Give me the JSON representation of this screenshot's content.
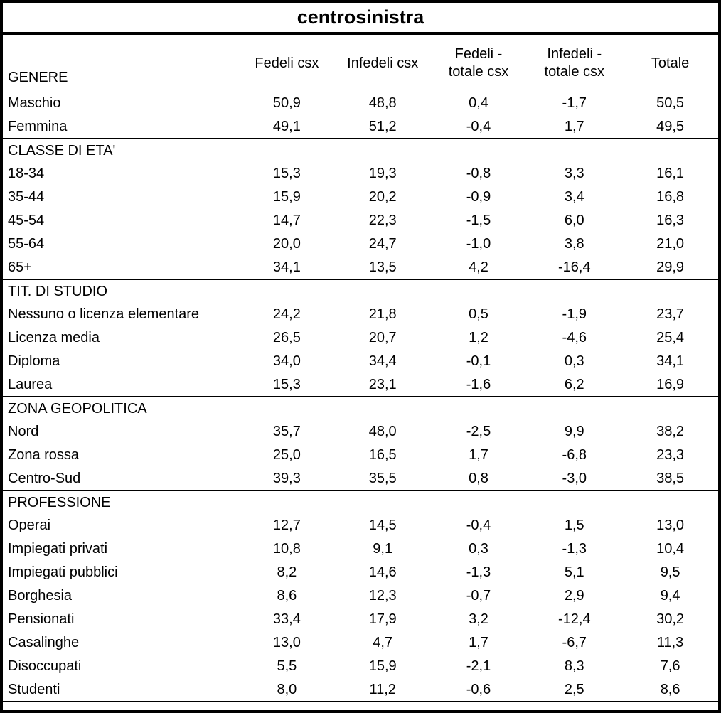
{
  "chart_data": {
    "type": "table",
    "title": "centrosinistra",
    "columns": [
      {
        "line1": "Fedeli csx",
        "line2": ""
      },
      {
        "line1": "Infedeli csx",
        "line2": ""
      },
      {
        "line1": "Fedeli -",
        "line2": "totale csx"
      },
      {
        "line1": "Infedeli -",
        "line2": "totale csx"
      },
      {
        "line1": "Totale",
        "line2": ""
      }
    ],
    "value_format": "decimal-comma",
    "sections": [
      {
        "name": "GENERE",
        "name_in_header_row": true,
        "rows": [
          {
            "label": "Maschio",
            "values": [
              "50,9",
              "48,8",
              "0,4",
              "-1,7",
              "50,5"
            ]
          },
          {
            "label": "Femmina",
            "values": [
              "49,1",
              "51,2",
              "-0,4",
              "1,7",
              "49,5"
            ]
          }
        ]
      },
      {
        "name": "CLASSE DI ETA'",
        "name_in_header_row": false,
        "rows": [
          {
            "label": "18-34",
            "values": [
              "15,3",
              "19,3",
              "-0,8",
              "3,3",
              "16,1"
            ]
          },
          {
            "label": "35-44",
            "values": [
              "15,9",
              "20,2",
              "-0,9",
              "3,4",
              "16,8"
            ]
          },
          {
            "label": "45-54",
            "values": [
              "14,7",
              "22,3",
              "-1,5",
              "6,0",
              "16,3"
            ]
          },
          {
            "label": "55-64",
            "values": [
              "20,0",
              "24,7",
              "-1,0",
              "3,8",
              "21,0"
            ]
          },
          {
            "label": "65+",
            "values": [
              "34,1",
              "13,5",
              "4,2",
              "-16,4",
              "29,9"
            ]
          }
        ]
      },
      {
        "name": "TIT. DI STUDIO",
        "name_in_header_row": false,
        "rows": [
          {
            "label": "Nessuno o licenza elementare",
            "values": [
              "24,2",
              "21,8",
              "0,5",
              "-1,9",
              "23,7"
            ]
          },
          {
            "label": "Licenza media",
            "values": [
              "26,5",
              "20,7",
              "1,2",
              "-4,6",
              "25,4"
            ]
          },
          {
            "label": "Diploma",
            "values": [
              "34,0",
              "34,4",
              "-0,1",
              "0,3",
              "34,1"
            ]
          },
          {
            "label": "Laurea",
            "values": [
              "15,3",
              "23,1",
              "-1,6",
              "6,2",
              "16,9"
            ]
          }
        ]
      },
      {
        "name": "ZONA GEOPOLITICA",
        "name_in_header_row": false,
        "rows": [
          {
            "label": "Nord",
            "values": [
              "35,7",
              "48,0",
              "-2,5",
              "9,9",
              "38,2"
            ]
          },
          {
            "label": "Zona rossa",
            "values": [
              "25,0",
              "16,5",
              "1,7",
              "-6,8",
              "23,3"
            ]
          },
          {
            "label": "Centro-Sud",
            "values": [
              "39,3",
              "35,5",
              "0,8",
              "-3,0",
              "38,5"
            ]
          }
        ]
      },
      {
        "name": "PROFESSIONE",
        "name_in_header_row": false,
        "rows": [
          {
            "label": "Operai",
            "values": [
              "12,7",
              "14,5",
              "-0,4",
              "1,5",
              "13,0"
            ]
          },
          {
            "label": "Impiegati privati",
            "values": [
              "10,8",
              "9,1",
              "0,3",
              "-1,3",
              "10,4"
            ]
          },
          {
            "label": "Impiegati pubblici",
            "values": [
              "8,2",
              "14,6",
              "-1,3",
              "5,1",
              "9,5"
            ]
          },
          {
            "label": "Borghesia",
            "values": [
              "8,6",
              "12,3",
              "-0,7",
              "2,9",
              "9,4"
            ]
          },
          {
            "label": "Pensionati",
            "values": [
              "33,4",
              "17,9",
              "3,2",
              "-12,4",
              "30,2"
            ]
          },
          {
            "label": "Casalinghe",
            "values": [
              "13,0",
              "4,7",
              "1,7",
              "-6,7",
              "11,3"
            ]
          },
          {
            "label": "Disoccupati",
            "values": [
              "5,5",
              "15,9",
              "-2,1",
              "8,3",
              "7,6"
            ]
          },
          {
            "label": "Studenti",
            "values": [
              "8,0",
              "11,2",
              "-0,6",
              "2,5",
              "8,6"
            ]
          }
        ]
      }
    ],
    "colors": {
      "text": "#000000",
      "background": "#ffffff",
      "border": "#000000"
    }
  }
}
